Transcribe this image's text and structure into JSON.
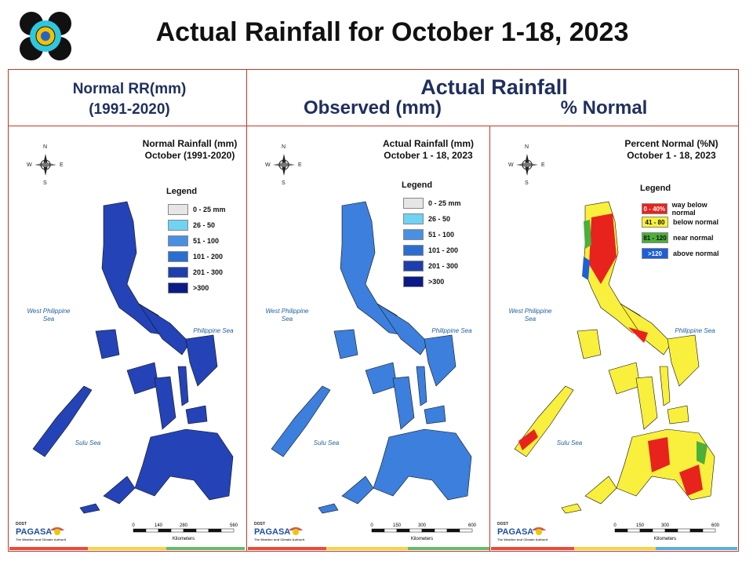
{
  "title": "Actual Rainfall for October 1-18, 2023",
  "headers": {
    "normal_line1": "Normal RR(mm)",
    "normal_line2": "(1991-2020)",
    "actual": "Actual Rainfall",
    "observed": "Observed (mm)",
    "percent": "% Normal"
  },
  "panels": [
    {
      "title_line1": "Normal Rainfall (mm)",
      "title_line2": "October (1991-2020)",
      "legend_title": "Legend",
      "legend": [
        {
          "label": "0 - 25 mm",
          "color": "#e6e6e6"
        },
        {
          "label": "26 - 50",
          "color": "#6fd3f3"
        },
        {
          "label": "51 - 100",
          "color": "#4a90e2"
        },
        {
          "label": "101 - 200",
          "color": "#2a6fd0"
        },
        {
          "label": "201 - 300",
          "color": "#1d3fae"
        },
        {
          "label": ">300",
          "color": "#0b1a86"
        }
      ],
      "sea_west": "West Philippine Sea",
      "sea_east": "Philippine Sea",
      "sea_sulu": "Sulu Sea",
      "scale_ticks": [
        "0",
        "140",
        "280",
        "560"
      ],
      "scale_unit": "Kilometers",
      "map_color": "#2443b6"
    },
    {
      "title_line1": "Actual Rainfall (mm)",
      "title_line2": "October 1 - 18, 2023",
      "legend_title": "Legend",
      "legend": [
        {
          "label": "0 - 25 mm",
          "color": "#e6e6e6"
        },
        {
          "label": "26 - 50",
          "color": "#6fd3f3"
        },
        {
          "label": "51 - 100",
          "color": "#4a90e2"
        },
        {
          "label": "101 - 200",
          "color": "#2a6fd0"
        },
        {
          "label": "201 - 300",
          "color": "#1d3fae"
        },
        {
          "label": ">300",
          "color": "#0b1a86"
        }
      ],
      "sea_west": "West Philippine Sea",
      "sea_east": "Philippine Sea",
      "sea_sulu": "Sulu Sea",
      "scale_ticks": [
        "0",
        "150",
        "300",
        "600"
      ],
      "scale_unit": "Kilometers",
      "map_color": "#3c7fdc"
    },
    {
      "title_line1": "Percent Normal (%N)",
      "title_line2": "October 1 - 18, 2023",
      "legend_title": "Legend",
      "legend": [
        {
          "label": "0 - 40%",
          "desc": "way below normal",
          "color": "#e8231d"
        },
        {
          "label": "41 - 80",
          "desc": "below normal",
          "color": "#f8f03c"
        },
        {
          "label": "81 - 120",
          "desc": "near normal",
          "color": "#4caf3a"
        },
        {
          "label": ">120",
          "desc": "above normal",
          "color": "#1e5fd6"
        }
      ],
      "sea_west": "West Philippine Sea",
      "sea_east": "Philippine Sea",
      "sea_sulu": "Sulu Sea",
      "scale_ticks": [
        "0",
        "150",
        "300",
        "600"
      ],
      "scale_unit": "Kilometers",
      "map_color": "#f8f03c"
    }
  ],
  "brand": {
    "small": "DOST",
    "mid": "PAGASA",
    "tag": "The Weather and Climate Authority"
  },
  "compass_n": "N",
  "compass_s": "S",
  "compass_e": "E",
  "compass_w": "W"
}
